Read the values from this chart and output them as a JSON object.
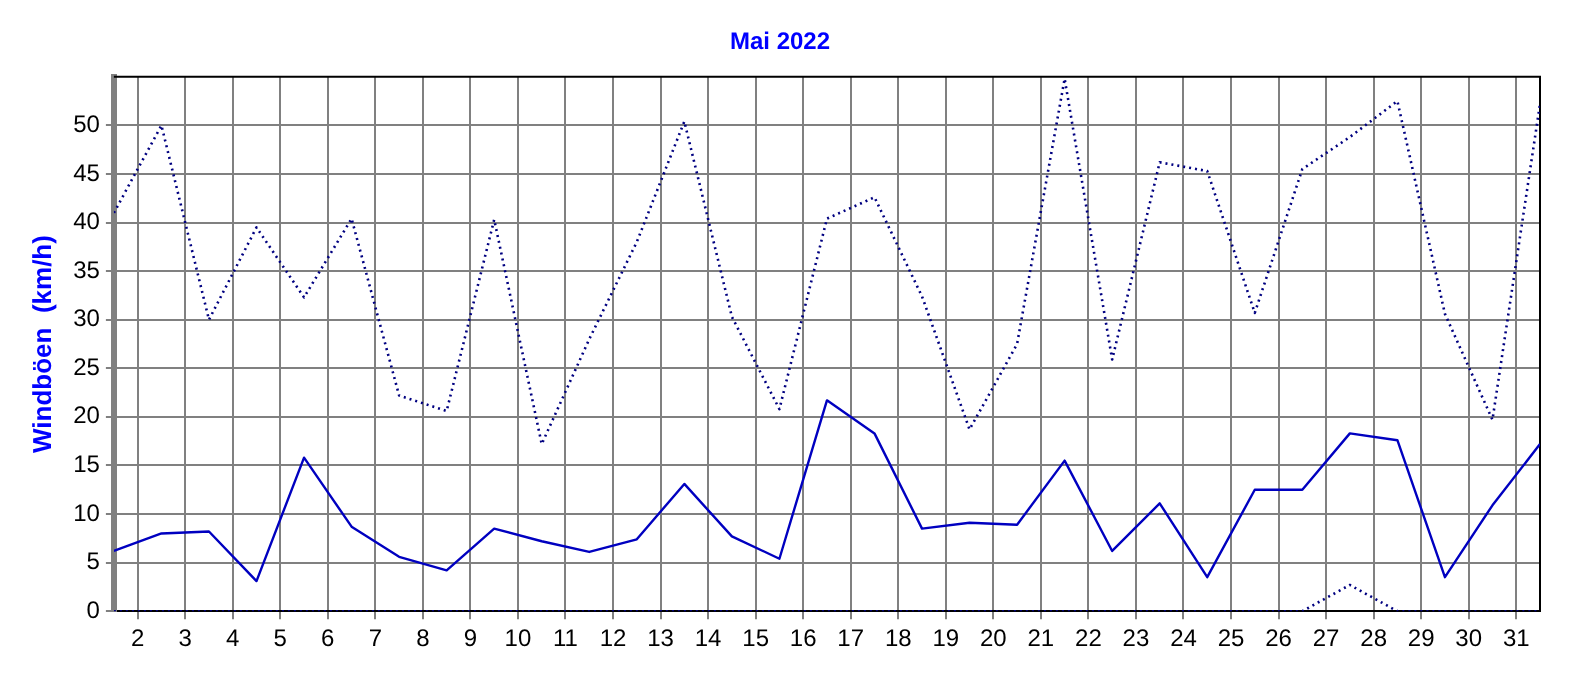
{
  "chart_data": {
    "type": "line",
    "title": "Mai 2022",
    "ylabel": "Windböen  (km/h)",
    "x": [
      1.5,
      2.5,
      3.5,
      4.5,
      5.5,
      6.5,
      7.5,
      8.5,
      9.5,
      10.5,
      11.5,
      12.5,
      13.5,
      14.5,
      15.5,
      16.5,
      17.5,
      18.5,
      19.5,
      20.5,
      21.5,
      22.5,
      23.5,
      24.5,
      25.5,
      26.5,
      27.5,
      28.5,
      29.5,
      30.5,
      31.5
    ],
    "xlim": [
      1.5,
      31.5
    ],
    "xticks": [
      2,
      3,
      4,
      5,
      6,
      7,
      8,
      9,
      10,
      11,
      12,
      13,
      14,
      15,
      16,
      17,
      18,
      19,
      20,
      21,
      22,
      23,
      24,
      25,
      26,
      27,
      28,
      29,
      30,
      31
    ],
    "ylim": [
      0,
      55
    ],
    "yticks": [
      0,
      5,
      10,
      15,
      20,
      25,
      30,
      35,
      40,
      45,
      50
    ],
    "grid": true,
    "legend": false,
    "marker": "none",
    "series": [
      {
        "color": "#000080",
        "line_style": "dotted",
        "values": [
          41,
          50,
          30,
          39.5,
          32.3,
          40.4,
          22.2,
          20.6,
          40.3,
          17.2,
          28,
          38,
          50.4,
          30.3,
          20.8,
          40.4,
          42.6,
          32.4,
          18.7,
          27.5,
          54.8,
          25.9,
          46.2,
          45.3,
          30.7,
          45.5,
          48.8,
          52.5,
          30.6,
          19.7,
          52.2
        ]
      },
      {
        "color": "#0000c0",
        "line_style": "solid",
        "values": [
          6.2,
          8,
          8.2,
          3.1,
          15.8,
          8.7,
          5.6,
          4.2,
          8.5,
          7.2,
          6.1,
          7.4,
          13.1,
          7.7,
          5.4,
          21.7,
          18.3,
          8.5,
          9.1,
          8.9,
          15.5,
          6.2,
          11.1,
          3.5,
          12.5,
          12.5,
          18.3,
          17.6,
          3.5,
          10.9,
          17.2
        ]
      },
      {
        "color": "#000080",
        "line_style": "dotted",
        "values": [
          0,
          0,
          0,
          0,
          0,
          0,
          0,
          0,
          0,
          0,
          0,
          0,
          0,
          0,
          0,
          0,
          0,
          0,
          0,
          0,
          0,
          0,
          0,
          0,
          0,
          0,
          2.7,
          0,
          0,
          0,
          0
        ]
      }
    ]
  }
}
